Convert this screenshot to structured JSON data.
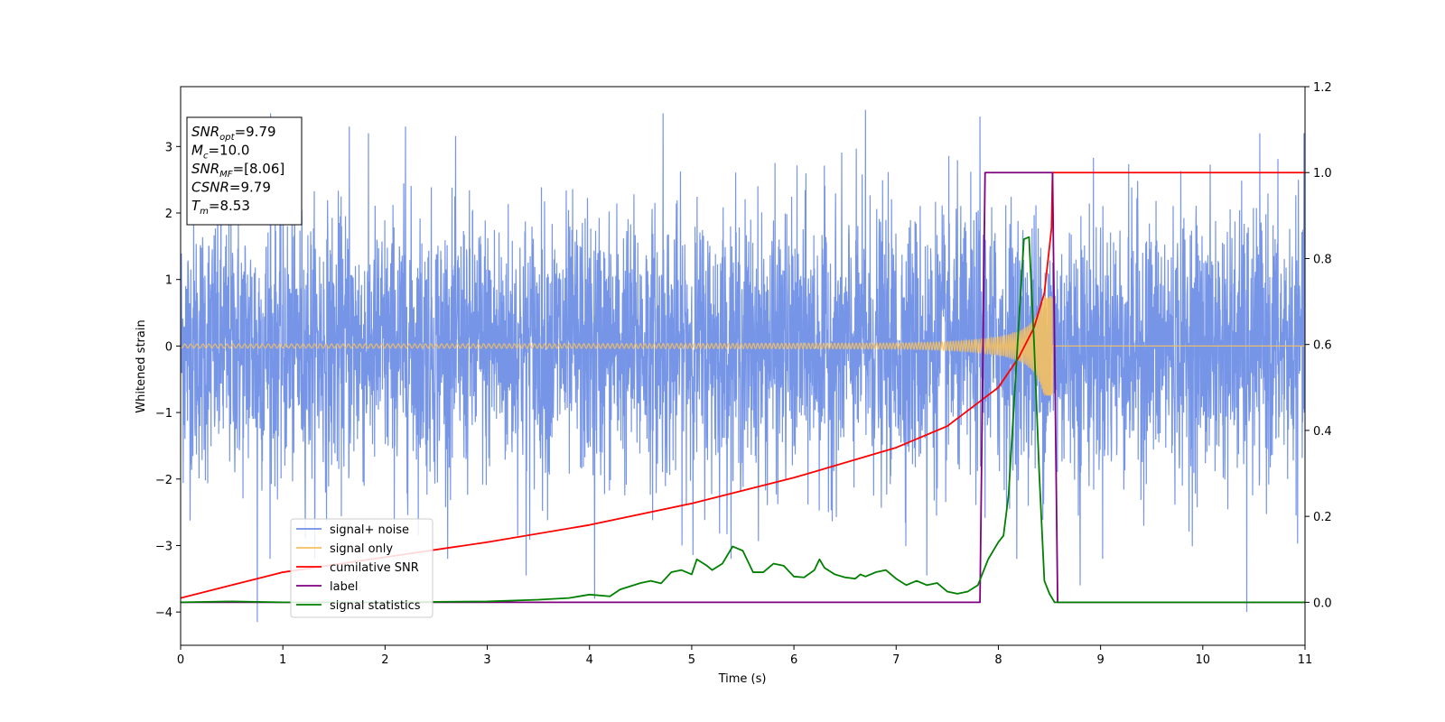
{
  "chart_data": {
    "type": "line",
    "xlabel": "Time (s)",
    "ylabel": "Whitened strain",
    "xlim": [
      0,
      11
    ],
    "ylim": [
      -4.5,
      3.9
    ],
    "y2lim": [
      -0.1,
      1.2
    ],
    "x_ticks": [
      0,
      1,
      2,
      3,
      4,
      5,
      6,
      7,
      8,
      9,
      10,
      11
    ],
    "y_ticks": [
      -4,
      -3,
      -2,
      -1,
      0,
      1,
      2,
      3
    ],
    "y2_ticks": [
      0.0,
      0.2,
      0.4,
      0.6,
      0.8,
      1.0,
      1.2
    ],
    "grid": false,
    "legend_position": "lower-left",
    "info_box": [
      {
        "main": "SNR",
        "sub": "opt",
        "value": "=9.79"
      },
      {
        "main": "M",
        "sub": "c",
        "value": "=10.0"
      },
      {
        "main": "SNR",
        "sub": "MF",
        "value": "=[8.06]"
      },
      {
        "main": "CSNR",
        "sub": "",
        "value": "=9.79"
      },
      {
        "main": "T",
        "sub": "m",
        "value": "=8.53"
      }
    ],
    "series": [
      {
        "name": "signal+ noise",
        "color": "#6f8fe6",
        "axis": "left",
        "kind": "noise",
        "envelope_std": 1.0,
        "spikes": [
          {
            "x": 0.75,
            "y": -4.15
          },
          {
            "x": 0.88,
            "y": 3.5
          },
          {
            "x": 1.65,
            "y": 3.3
          },
          {
            "x": 2.2,
            "y": 3.3
          },
          {
            "x": 4.05,
            "y": -3.8
          },
          {
            "x": 4.72,
            "y": 3.5
          },
          {
            "x": 6.7,
            "y": 3.55
          },
          {
            "x": 7.3,
            "y": -3.45
          },
          {
            "x": 7.82,
            "y": 3.45
          },
          {
            "x": 8.8,
            "y": -3.6
          },
          {
            "x": 10.43,
            "y": -4.0
          },
          {
            "x": 3.38,
            "y": -3.45
          }
        ]
      },
      {
        "name": "signal only",
        "color": "#f5c060",
        "axis": "left",
        "kind": "chirp",
        "t_merger": 8.53,
        "amplitude_at_start": 0.03,
        "amplitude_at_merger": 0.75
      },
      {
        "name": "cumilative SNR",
        "color": "#ff0000",
        "axis": "right",
        "x": [
          0,
          1,
          2,
          3,
          4,
          5,
          6,
          7,
          7.5,
          8.0,
          8.2,
          8.35,
          8.45,
          8.52,
          8.53,
          11
        ],
        "y": [
          0.01,
          0.07,
          0.105,
          0.14,
          0.18,
          0.23,
          0.29,
          0.36,
          0.41,
          0.5,
          0.57,
          0.64,
          0.72,
          0.87,
          1.0,
          1.0
        ]
      },
      {
        "name": "label",
        "color": "#800080",
        "axis": "right",
        "x": [
          0,
          7.82,
          7.87,
          8.53,
          8.58,
          11
        ],
        "y": [
          0.0,
          0.0,
          1.0,
          1.0,
          0.0,
          0.0
        ]
      },
      {
        "name": "signal statistics",
        "color": "#008000",
        "axis": "right",
        "x": [
          0,
          0.5,
          1.0,
          2.0,
          3.0,
          3.5,
          3.8,
          4.0,
          4.2,
          4.3,
          4.5,
          4.6,
          4.7,
          4.8,
          4.9,
          5.0,
          5.05,
          5.15,
          5.2,
          5.3,
          5.4,
          5.5,
          5.6,
          5.7,
          5.8,
          5.9,
          6.0,
          6.1,
          6.2,
          6.25,
          6.3,
          6.4,
          6.5,
          6.6,
          6.65,
          6.7,
          6.8,
          6.9,
          7.0,
          7.1,
          7.2,
          7.3,
          7.4,
          7.5,
          7.6,
          7.7,
          7.8,
          7.9,
          8.0,
          8.05,
          8.1,
          8.15,
          8.2,
          8.25,
          8.3,
          8.35,
          8.4,
          8.45,
          8.5,
          8.55,
          11
        ],
        "y": [
          0.0,
          0.002,
          0.0,
          0.0,
          0.002,
          0.006,
          0.01,
          0.018,
          0.014,
          0.03,
          0.045,
          0.05,
          0.044,
          0.07,
          0.075,
          0.065,
          0.1,
          0.085,
          0.075,
          0.09,
          0.13,
          0.12,
          0.07,
          0.07,
          0.09,
          0.085,
          0.06,
          0.058,
          0.075,
          0.1,
          0.08,
          0.065,
          0.058,
          0.055,
          0.065,
          0.06,
          0.07,
          0.075,
          0.055,
          0.04,
          0.05,
          0.04,
          0.045,
          0.025,
          0.02,
          0.025,
          0.04,
          0.1,
          0.14,
          0.155,
          0.25,
          0.45,
          0.65,
          0.845,
          0.85,
          0.6,
          0.3,
          0.05,
          0.02,
          0.0,
          0.0
        ]
      }
    ]
  }
}
